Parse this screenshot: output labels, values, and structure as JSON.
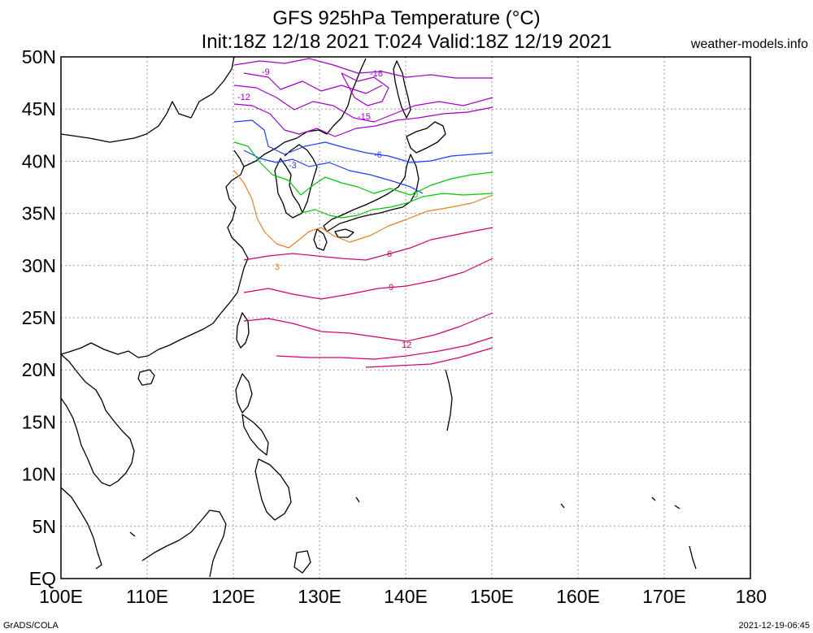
{
  "map": {
    "title_line1": "GFS 925hPa Temperature (°C)",
    "title_line2": "Init:18Z 12/18 2021 T:024 Valid:18Z 12/19 2021",
    "credit": "weather-models.info",
    "footer_left": "GrADS/COLA",
    "footer_right": "2021-12-19-06:45",
    "lat_labels": [
      "50N",
      "45N",
      "40N",
      "35N",
      "30N",
      "25N",
      "20N",
      "15N",
      "10N",
      "5N",
      "EQ"
    ],
    "lon_labels": [
      "100E",
      "110E",
      "120E",
      "130E",
      "140E",
      "150E",
      "160E",
      "170E",
      "180"
    ],
    "extent": {
      "lon_min": 100,
      "lon_max": 180,
      "lat_min": 0,
      "lat_max": 50
    },
    "data_extent": {
      "lon_min": 120,
      "lon_max": 150
    },
    "contour_colors": {
      "-18": "#a000c8",
      "-15": "#a000c8",
      "-12": "#a000c8",
      "-9": "#a000c8",
      "-6": "#1e3cff",
      "-3": "#1e3cff",
      "0": "#00c800",
      "3": "#e6821e",
      "6": "#d2006e",
      "9": "#d2006e",
      "12": "#d2006e"
    },
    "contour_labels": [
      "-18",
      "-15",
      "-12",
      "-9",
      "-6",
      "-3",
      "0",
      "3",
      "6",
      "9",
      "12"
    ]
  }
}
